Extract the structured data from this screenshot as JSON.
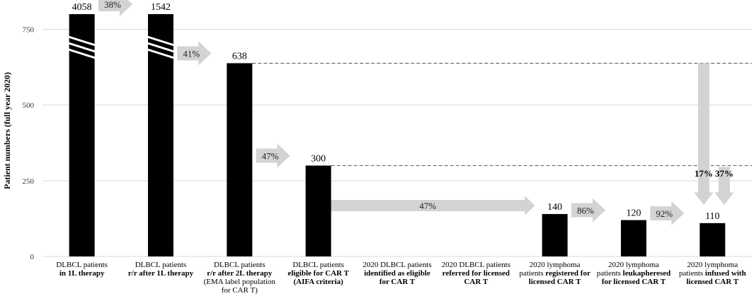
{
  "chart_data": {
    "type": "bar",
    "ylabel": "Patient numbers (full year 2020)",
    "ylim": [
      0,
      800
    ],
    "yticks": [
      0,
      250,
      500,
      750
    ],
    "grid": true,
    "categories": [
      {
        "lines": [
          [
            {
              "t": "DLBCL patients",
              "b": false
            }
          ],
          [
            {
              "t": "in 1L therapy",
              "b": true
            }
          ]
        ]
      },
      {
        "lines": [
          [
            {
              "t": "DLBCL patients",
              "b": false
            }
          ],
          [
            {
              "t": "r/r after 1L therapy",
              "b": true
            }
          ]
        ]
      },
      {
        "lines": [
          [
            {
              "t": "DLBCL patients",
              "b": false
            }
          ],
          [
            {
              "t": "r/r after 2L therapy",
              "b": true
            }
          ],
          [
            {
              "t": "(EMA label population",
              "b": false
            }
          ],
          [
            {
              "t": "for CAR T)",
              "b": false
            }
          ]
        ]
      },
      {
        "lines": [
          [
            {
              "t": "DLBCL patients",
              "b": false
            }
          ],
          [
            {
              "t": "eligible for CAR T",
              "b": true
            }
          ],
          [
            {
              "t": "(AIFA criteria)",
              "b": true
            }
          ]
        ]
      },
      {
        "lines": [
          [
            {
              "t": "2020 DLBCL patients",
              "b": false
            }
          ],
          [
            {
              "t": "identified as eligible",
              "b": true
            }
          ],
          [
            {
              "t": "for CAR T",
              "b": true
            }
          ]
        ]
      },
      {
        "lines": [
          [
            {
              "t": "2020 DLBCL patients",
              "b": false
            }
          ],
          [
            {
              "t": "referred for licensed",
              "b": true
            }
          ],
          [
            {
              "t": "CAR T",
              "b": true
            }
          ]
        ]
      },
      {
        "lines": [
          [
            {
              "t": "2020 lymphoma",
              "b": false
            }
          ],
          [
            {
              "t": "patients ",
              "b": false
            },
            {
              "t": "registered for",
              "b": true
            }
          ],
          [
            {
              "t": "licensed CAR T",
              "b": true
            }
          ]
        ]
      },
      {
        "lines": [
          [
            {
              "t": "2020 lymphoma",
              "b": false
            }
          ],
          [
            {
              "t": "patients ",
              "b": false
            },
            {
              "t": "leukapheresed",
              "b": true
            }
          ],
          [
            {
              "t": "for licensed CAR T",
              "b": true
            }
          ]
        ]
      },
      {
        "lines": [
          [
            {
              "t": "2020 lymphoma",
              "b": false
            }
          ],
          [
            {
              "t": "patients ",
              "b": false
            },
            {
              "t": "infused with",
              "b": true
            }
          ],
          [
            {
              "t": "licensed CAR T",
              "b": true
            }
          ]
        ]
      }
    ],
    "values": [
      4058,
      1542,
      638,
      300,
      null,
      null,
      140,
      120,
      110
    ],
    "value_labels": [
      "4058",
      "1542",
      "638",
      "300",
      "",
      "",
      "140",
      "120",
      "110"
    ],
    "axis_break": [
      true,
      true,
      false,
      false,
      false,
      false,
      false,
      false,
      false
    ],
    "transition_labels": [
      {
        "after": 0,
        "text": "38%"
      },
      {
        "after": 1,
        "text": "41%"
      },
      {
        "after": 2,
        "text": "47%"
      },
      {
        "after": 6,
        "text": "86%"
      },
      {
        "after": 7,
        "text": "92%"
      }
    ],
    "long_arrow_label": "47%",
    "reference_lines": [
      638,
      300
    ],
    "final_ratios": [
      "17%",
      "37%"
    ],
    "colors": {
      "bar": "#000000",
      "arrow": "#d3d3d3",
      "grid": "#d9d9d9",
      "refline": "#555555"
    }
  }
}
